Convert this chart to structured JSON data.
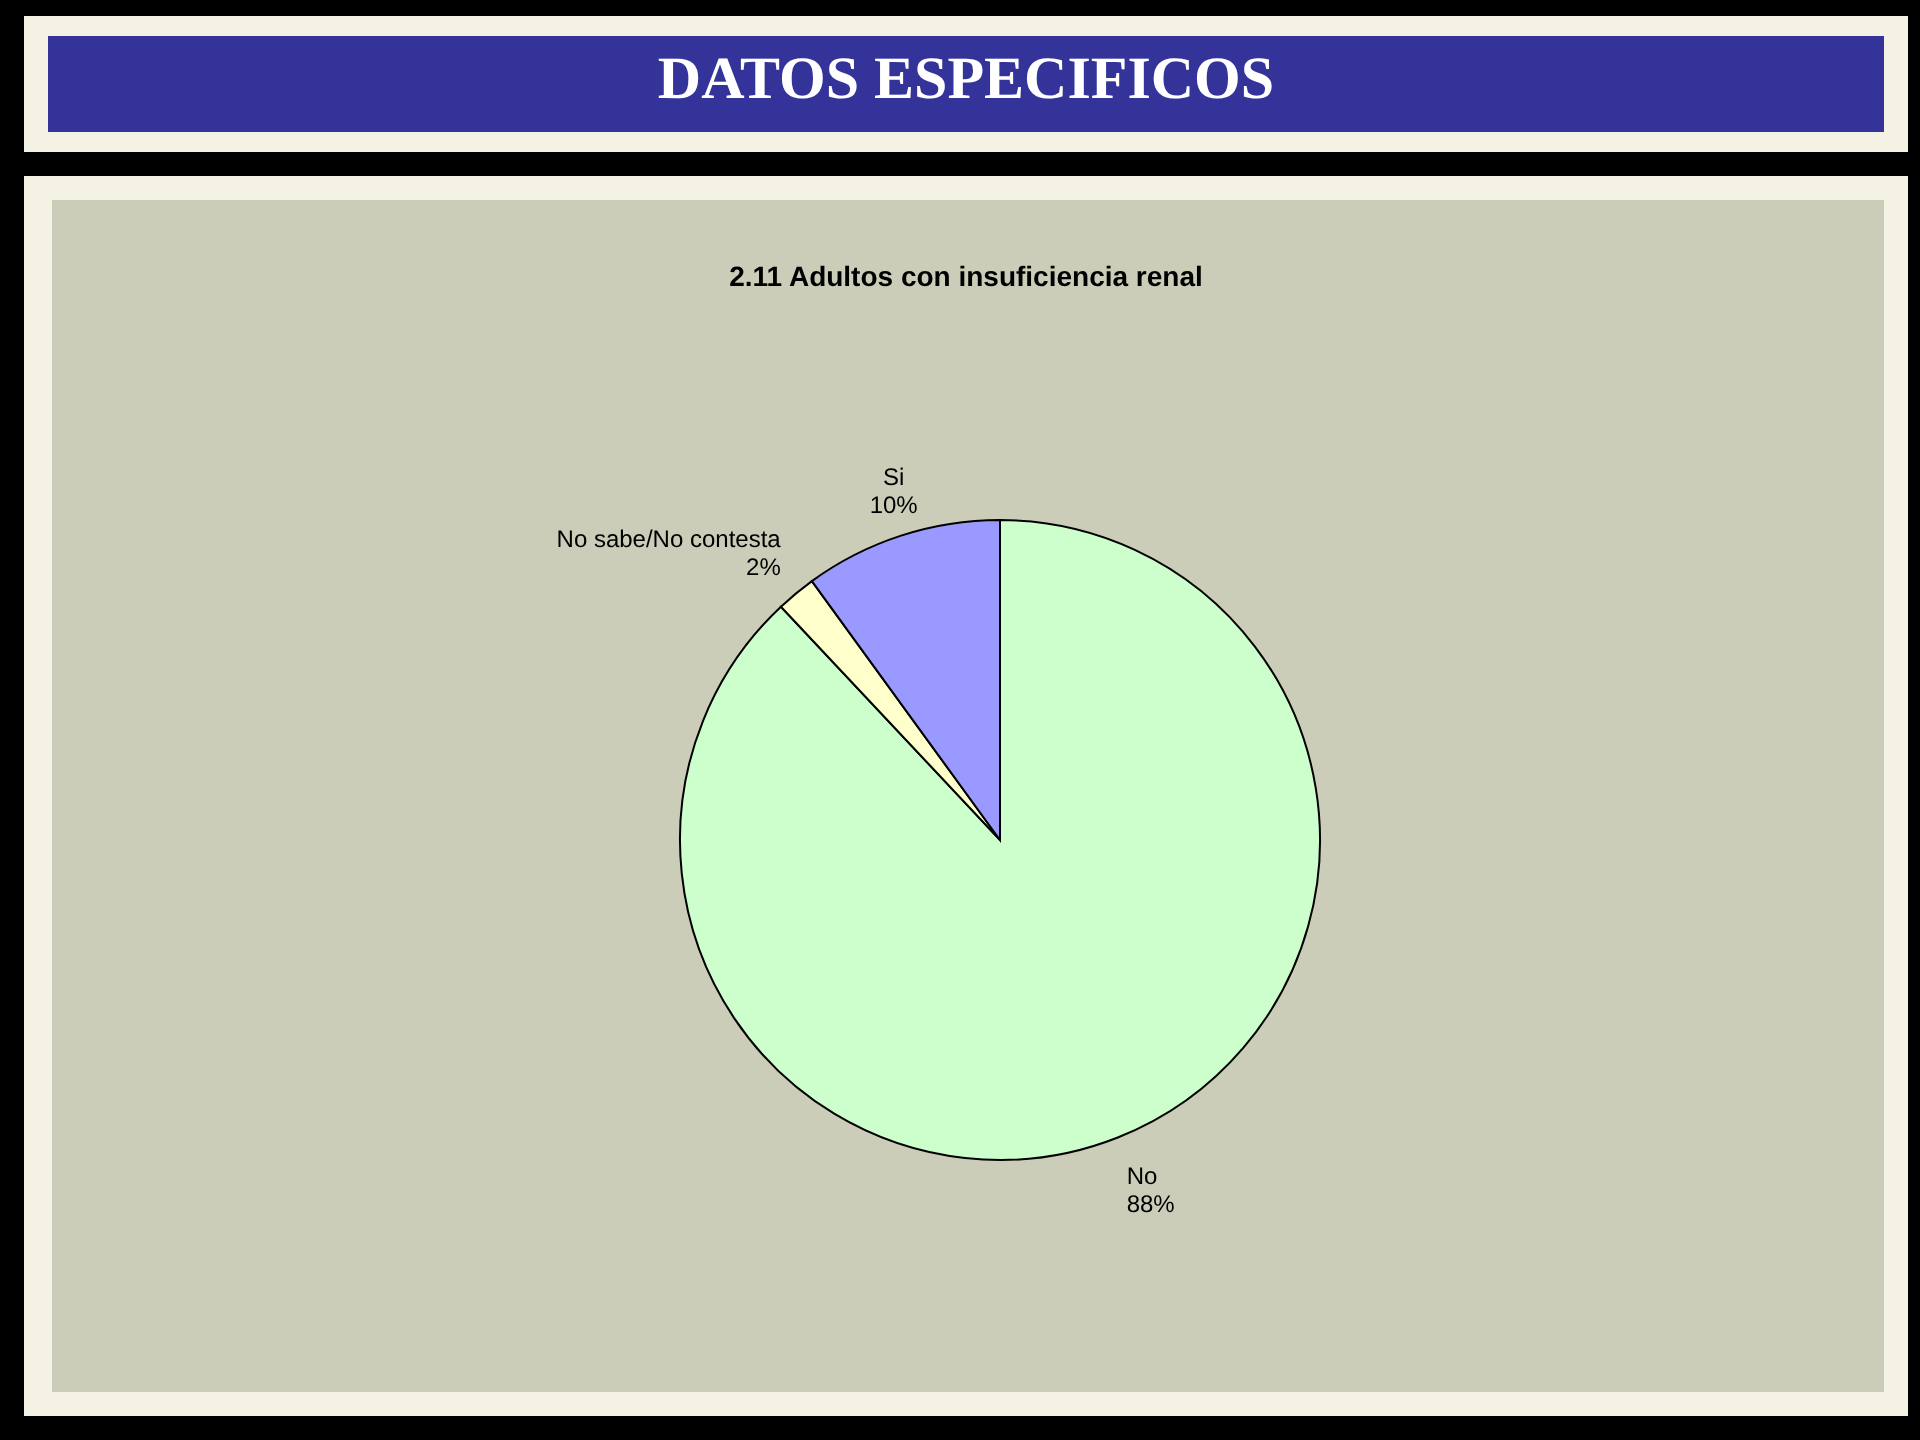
{
  "chart_data": {
    "type": "pie",
    "title": "DATOS ESPECIFICOS",
    "subtitle": "2.11 Adultos con insuficiencia renal",
    "categories": [
      "No",
      "No sabe/No contesta",
      "Si"
    ],
    "values": [
      88,
      2,
      10
    ],
    "colors": [
      "#ccffcc",
      "#ffffcc",
      "#9999ff"
    ],
    "value_labels": [
      "88%",
      "2%",
      "10%"
    ]
  }
}
